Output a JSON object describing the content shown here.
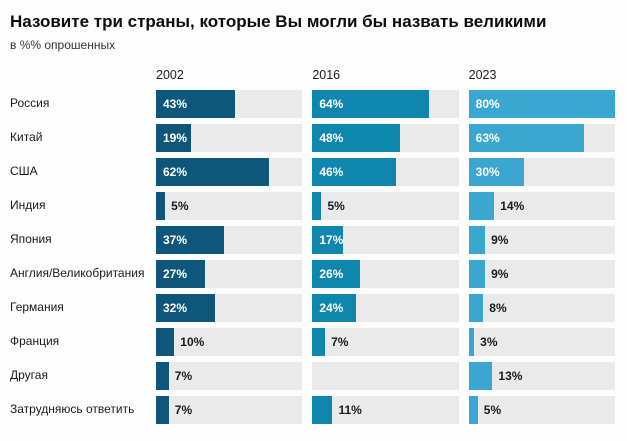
{
  "chart": {
    "title": "Назовите три страны, которые Вы могли бы назвать великими",
    "subtitle": "в %% опрошенных",
    "columns": [
      "2002",
      "2016",
      "2023"
    ],
    "colors": [
      "#0e567a",
      "#0f86ae",
      "#3aa7d1"
    ],
    "track_color": "#eaeaea",
    "unit": "%",
    "scale_max": 80,
    "inside_label_min": 17,
    "rows": [
      {
        "label": "Россия",
        "values": [
          43,
          64,
          80
        ]
      },
      {
        "label": "Китай",
        "values": [
          19,
          48,
          63
        ]
      },
      {
        "label": "США",
        "values": [
          62,
          46,
          30
        ]
      },
      {
        "label": "Индия",
        "values": [
          5,
          5,
          14
        ]
      },
      {
        "label": "Япония",
        "values": [
          37,
          17,
          9
        ]
      },
      {
        "label": "Англия/Великобритания",
        "values": [
          27,
          26,
          9
        ]
      },
      {
        "label": "Германия",
        "values": [
          32,
          24,
          8
        ]
      },
      {
        "label": "Франция",
        "values": [
          10,
          7,
          3
        ]
      },
      {
        "label": "Другая",
        "values": [
          7,
          null,
          13
        ]
      },
      {
        "label": "Затрудняюсь ответить",
        "values": [
          7,
          11,
          5
        ]
      }
    ]
  },
  "chart_data": {
    "type": "bar",
    "orientation": "horizontal",
    "title": "Назовите три страны, которые Вы могли бы назвать великими",
    "subtitle": "в %% опрошенных",
    "unit": "%",
    "categories": [
      "Россия",
      "Китай",
      "США",
      "Индия",
      "Япония",
      "Англия/Великобритания",
      "Германия",
      "Франция",
      "Другая",
      "Затрудняюсь ответить"
    ],
    "series": [
      {
        "name": "2002",
        "color": "#0e567a",
        "values": [
          43,
          19,
          62,
          5,
          37,
          27,
          32,
          10,
          7,
          7
        ]
      },
      {
        "name": "2016",
        "color": "#0f86ae",
        "values": [
          64,
          48,
          46,
          5,
          17,
          26,
          24,
          7,
          null,
          11
        ]
      },
      {
        "name": "2023",
        "color": "#3aa7d1",
        "values": [
          80,
          63,
          30,
          14,
          9,
          9,
          8,
          3,
          13,
          5
        ]
      }
    ],
    "xlim": [
      0,
      80
    ],
    "legend_position": "column-headers-top",
    "grid": false
  }
}
